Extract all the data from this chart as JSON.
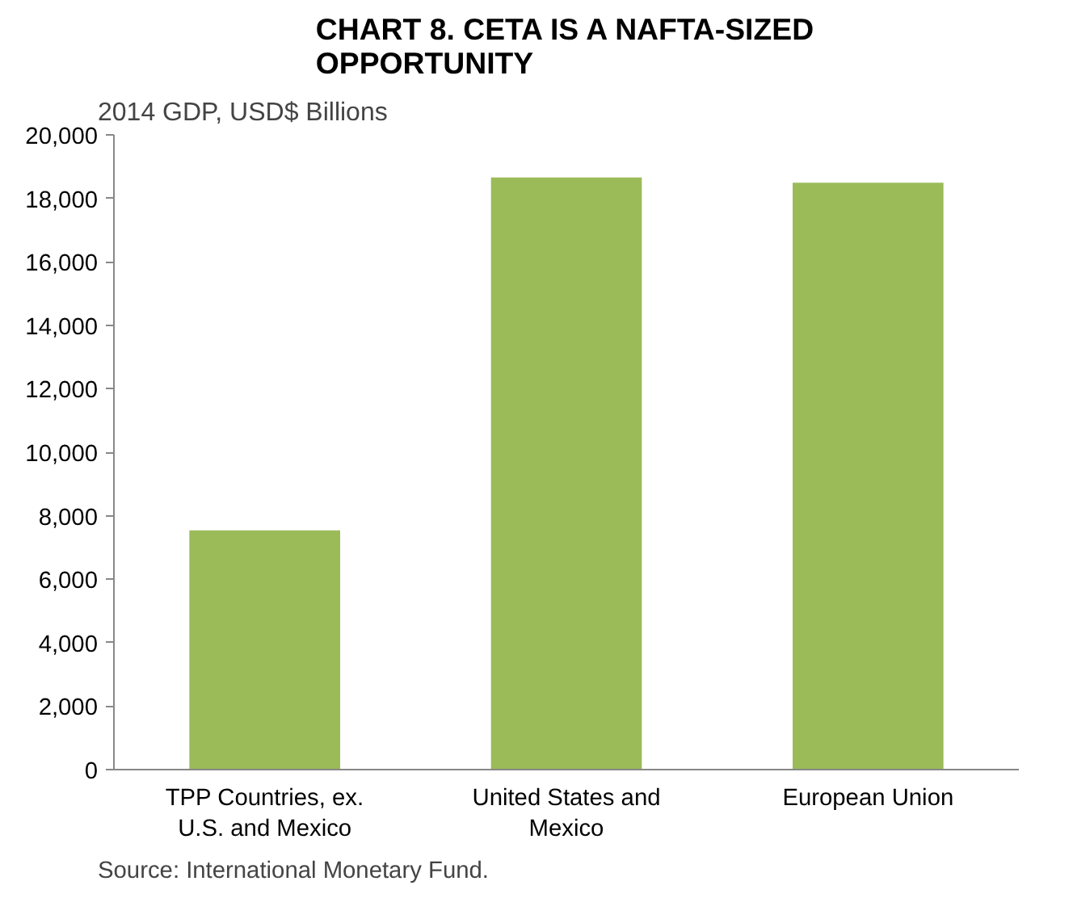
{
  "chart_data": {
    "type": "bar",
    "title": "CHART 8. CETA IS A NAFTA-SIZED\nOPPORTUNITY",
    "ylabel": "2014 GDP, USD$ Billions",
    "categories": [
      "TPP Countries, ex. U.S. and Mexico",
      "United States and Mexico",
      "European Union"
    ],
    "values": [
      7540,
      18660,
      18490
    ],
    "color": "#9bbb59",
    "ylim": [
      0,
      20000
    ],
    "yticks": [
      {
        "value": 0,
        "label": "0"
      },
      {
        "value": 2000,
        "label": "2,000"
      },
      {
        "value": 4000,
        "label": "4,000"
      },
      {
        "value": 6000,
        "label": "6,000"
      },
      {
        "value": 8000,
        "label": "8,000"
      },
      {
        "value": 10000,
        "label": "10,000"
      },
      {
        "value": 12000,
        "label": "12,000"
      },
      {
        "value": 14000,
        "label": "14,000"
      },
      {
        "value": 16000,
        "label": "16,000"
      },
      {
        "value": 18000,
        "label": "18,000"
      },
      {
        "value": 20000,
        "label": "20,000"
      }
    ],
    "grid": false,
    "annotations": [
      "Source: International Monetary Fund."
    ]
  }
}
